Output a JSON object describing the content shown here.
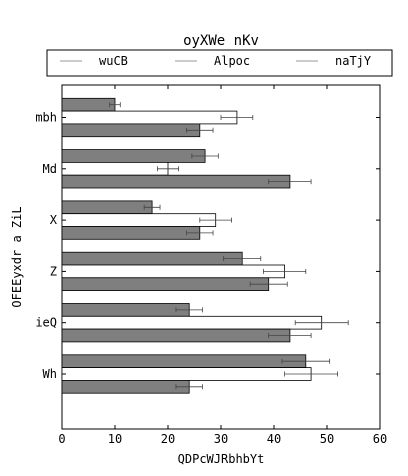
{
  "chart_data": {
    "type": "bar",
    "orientation": "horizontal",
    "title": "oyXWe nKv",
    "xlabel": "QDPcWJRbhbYt",
    "ylabel": "OFEEyxdr a ZiL",
    "xlim": [
      0,
      60
    ],
    "xticks": [
      "0",
      "10",
      "20",
      "30",
      "40",
      "50",
      "60"
    ],
    "grid": false,
    "legend_placement": "top",
    "categories": [
      "mbh",
      "Md",
      "X",
      "Z",
      "ieQ",
      "Wh"
    ],
    "series": [
      {
        "name": "wuCB",
        "color": "#7f7f7f",
        "values": [
          10,
          27,
          17,
          34,
          24,
          46
        ],
        "errors": [
          1,
          2.5,
          1.5,
          3.5,
          2.5,
          4.5
        ]
      },
      {
        "name": "Alpoc",
        "color": "#ffffff",
        "values": [
          33,
          20,
          29,
          42,
          49,
          47
        ],
        "errors": [
          3,
          2,
          3,
          4,
          5,
          5
        ]
      },
      {
        "name": "naTjY",
        "color": "#7f7f7f",
        "values": [
          26,
          43,
          26,
          39,
          43,
          24
        ],
        "errors": [
          2.5,
          4,
          2.5,
          3.5,
          4,
          2.5
        ]
      }
    ]
  }
}
